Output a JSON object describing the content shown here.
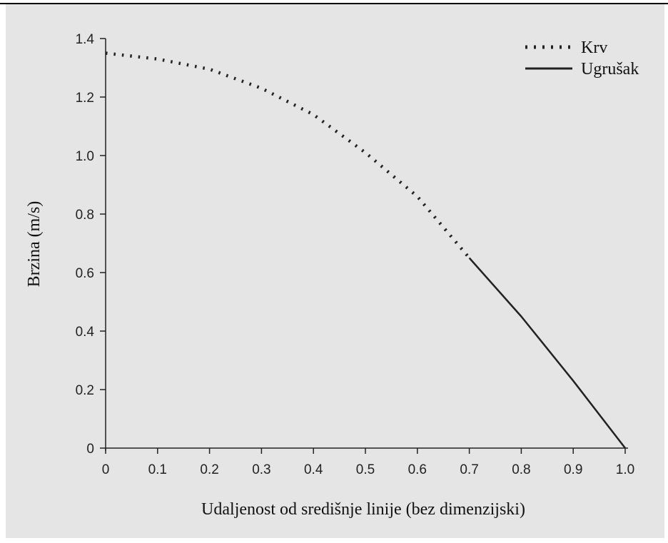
{
  "chart_data": {
    "type": "line",
    "title": "",
    "xlabel": "Udaljenost od središnje linije (bez dimenzijski)",
    "ylabel": "Brzina (m/s)",
    "xlim": [
      0,
      1.0
    ],
    "ylim": [
      0,
      1.4
    ],
    "x_ticks": [
      "0",
      "0.1",
      "0.2",
      "0.3",
      "0.4",
      "0.5",
      "0.6",
      "0.7",
      "0.8",
      "0.9",
      "1.0"
    ],
    "y_ticks": [
      "0",
      "0.2",
      "0.4",
      "0.6",
      "0.8",
      "1.0",
      "1.2",
      "1.4"
    ],
    "legend_position": "top-right",
    "grid": false,
    "series": [
      {
        "name": "Krv",
        "style": "dotted",
        "color": "#222222",
        "x": [
          0,
          0.1,
          0.2,
          0.3,
          0.4,
          0.5,
          0.6,
          0.7
        ],
        "y": [
          1.35,
          1.33,
          1.295,
          1.23,
          1.14,
          1.01,
          0.86,
          0.65
        ]
      },
      {
        "name": "Ugrušak",
        "style": "solid",
        "color": "#222222",
        "x": [
          0.7,
          0.8,
          0.9,
          1.0
        ],
        "y": [
          0.65,
          0.45,
          0.23,
          0.0
        ]
      }
    ]
  }
}
